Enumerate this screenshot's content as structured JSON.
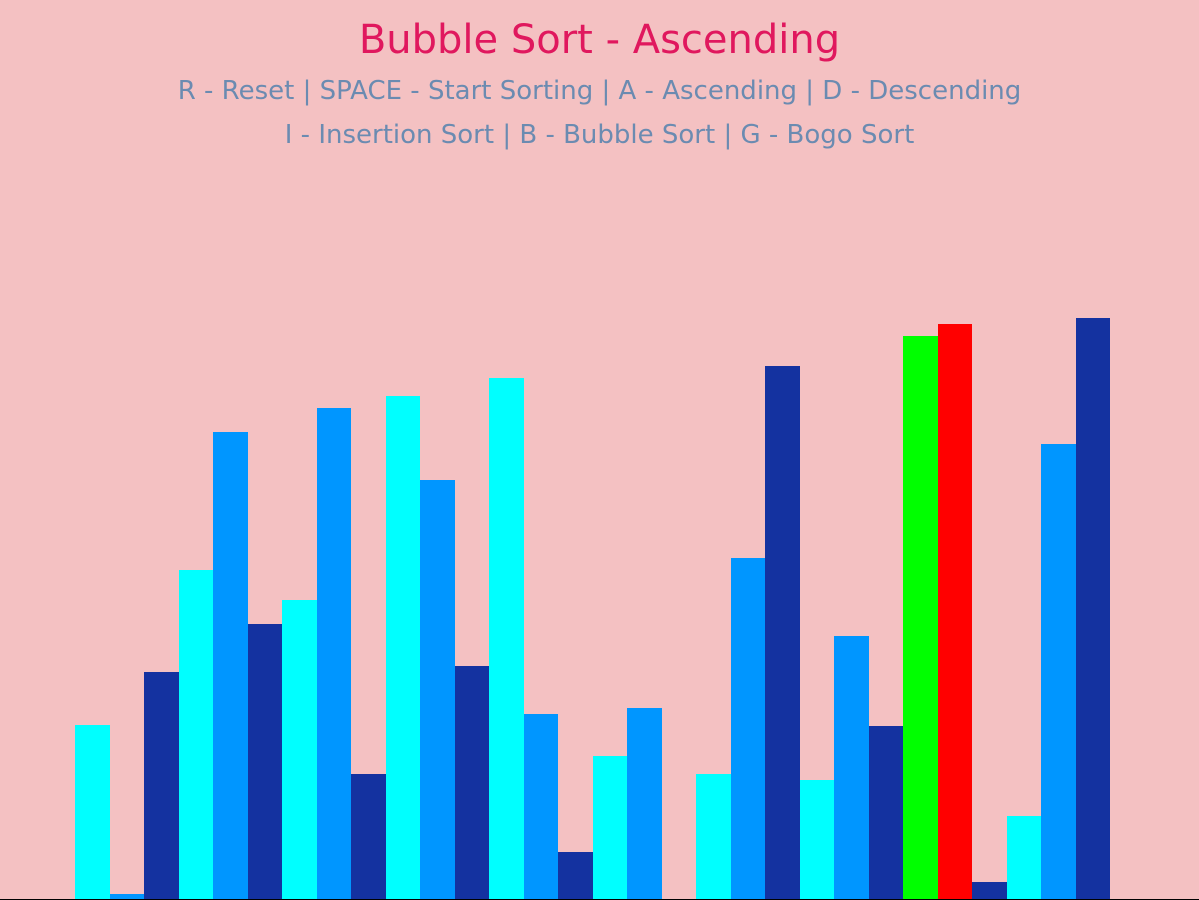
{
  "game": {
    "title": "Bubble Sort - Ascending",
    "help_line_1": "R - Reset | SPACE - Start Sorting | A - Ascending | D - Descending",
    "help_line_2": "I - Insertion Sort | B - Bubble Sort | G - Bogo Sort"
  },
  "colors": {
    "background": "#f4c1c2",
    "title": "#e0185e",
    "help_text": "#6b8bb1",
    "bar_cyan": "#00ffff",
    "bar_blue": "#0096ff",
    "bar_navy": "#1432a0",
    "bar_compare_green": "#00ff00",
    "bar_compare_red": "#ff0000"
  },
  "chart_data": {
    "type": "bar",
    "max_value": 600,
    "values": [
      175,
      6,
      228,
      330,
      468,
      276,
      300,
      492,
      126,
      504,
      420,
      234,
      522,
      186,
      48,
      144,
      192,
      0,
      126,
      342,
      534,
      120,
      264,
      174,
      564,
      576,
      18,
      84,
      456,
      582
    ],
    "colors": [
      "bar_cyan",
      "bar_blue",
      "bar_navy",
      "bar_cyan",
      "bar_blue",
      "bar_navy",
      "bar_cyan",
      "bar_blue",
      "bar_navy",
      "bar_cyan",
      "bar_blue",
      "bar_navy",
      "bar_cyan",
      "bar_blue",
      "bar_navy",
      "bar_cyan",
      "bar_blue",
      "bar_navy",
      "bar_cyan",
      "bar_blue",
      "bar_navy",
      "bar_cyan",
      "bar_blue",
      "bar_navy",
      "bar_compare_green",
      "bar_compare_red",
      "bar_navy",
      "bar_cyan",
      "bar_blue",
      "bar_navy"
    ]
  }
}
